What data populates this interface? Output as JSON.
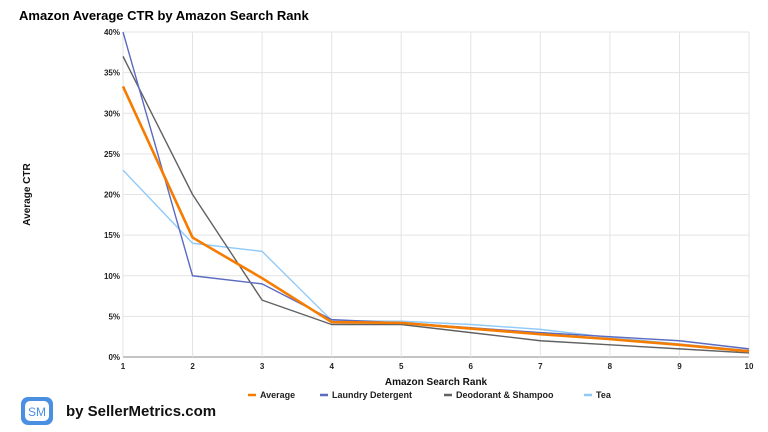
{
  "chart_data": {
    "type": "line",
    "title": "Amazon Average CTR by Amazon Search Rank",
    "xlabel": "Amazon Search Rank",
    "ylabel": "Average CTR",
    "x": [
      1,
      2,
      3,
      4,
      5,
      6,
      7,
      8,
      9,
      10
    ],
    "xlim": [
      1,
      10
    ],
    "ylim": [
      0,
      40
    ],
    "yticks": [
      0,
      5,
      10,
      15,
      20,
      25,
      30,
      35,
      40
    ],
    "ytick_labels": [
      "0%",
      "5%",
      "10%",
      "15%",
      "20%",
      "25%",
      "30%",
      "35%",
      "40%"
    ],
    "grid": true,
    "legend_position": "bottom",
    "series": [
      {
        "name": "Average",
        "color": "#f57c00",
        "values": [
          33.3,
          14.7,
          9.7,
          4.3,
          4.2,
          3.5,
          2.8,
          2.2,
          1.5,
          0.7
        ]
      },
      {
        "name": "Laundry Detergent",
        "color": "#5c6bc0",
        "values": [
          40,
          10,
          9,
          4.6,
          4.2,
          3.6,
          3.0,
          2.5,
          2.0,
          1.0
        ]
      },
      {
        "name": "Deodorant & Shampoo",
        "color": "#616161",
        "values": [
          37,
          20,
          7,
          4.0,
          4.0,
          3.0,
          2.0,
          1.5,
          1.0,
          0.5
        ]
      },
      {
        "name": "Tea",
        "color": "#90caf9",
        "values": [
          23,
          14,
          13,
          4.5,
          4.4,
          4.0,
          3.4,
          2.4,
          1.6,
          0.8
        ]
      }
    ]
  },
  "brand": {
    "logo_text": "SM",
    "text": "by SellerMetrics.com",
    "color": "#4a90e2"
  }
}
